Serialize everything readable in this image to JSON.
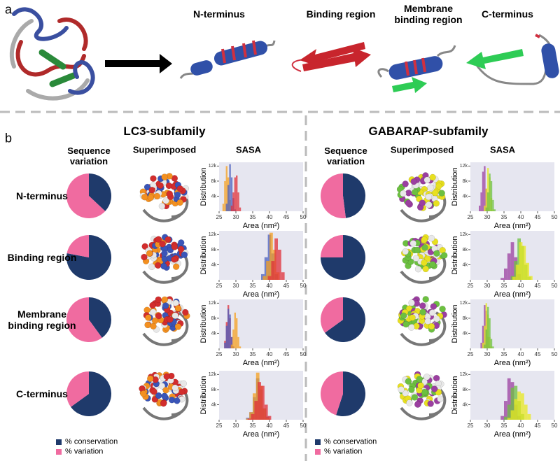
{
  "panel_a": {
    "label": "a",
    "regions": [
      "N-terminus",
      "Binding region",
      "Membrane binding region",
      "C-terminus"
    ]
  },
  "panel_b": {
    "label": "b",
    "rows": [
      "N-terminus",
      "Binding region",
      "Membrane binding region",
      "C-terminus"
    ],
    "groups": [
      {
        "title": "LC3-subfamily",
        "columns": [
          "Sequence variation",
          "Superimposed",
          "SASA"
        ],
        "legend": [
          {
            "label": "% conservation",
            "color": "#1f3a6b"
          },
          {
            "label": "% variation",
            "color": "#f06ba0"
          }
        ]
      },
      {
        "title": "GABARAP-subfamily",
        "columns": [
          "Sequence variation",
          "Superimposed",
          "SASA"
        ],
        "legend": [
          {
            "label": "% conservation",
            "color": "#1f3a6b"
          },
          {
            "label": "% variation",
            "color": "#f06ba0"
          }
        ]
      }
    ]
  },
  "chart_data": [
    {
      "type": "pie",
      "values": [
        37,
        63
      ],
      "colors": [
        "#1f3a6b",
        "#f06ba0"
      ]
    },
    {
      "type": "pie",
      "values": [
        78,
        22
      ],
      "colors": [
        "#1f3a6b",
        "#f06ba0"
      ]
    },
    {
      "type": "pie",
      "values": [
        40,
        60
      ],
      "colors": [
        "#1f3a6b",
        "#f06ba0"
      ]
    },
    {
      "type": "pie",
      "values": [
        65,
        35
      ],
      "colors": [
        "#1f3a6b",
        "#f06ba0"
      ]
    },
    {
      "type": "pie",
      "values": [
        48,
        52
      ],
      "colors": [
        "#1f3a6b",
        "#f06ba0"
      ]
    },
    {
      "type": "pie",
      "values": [
        75,
        25
      ],
      "colors": [
        "#1f3a6b",
        "#f06ba0"
      ]
    },
    {
      "type": "pie",
      "values": [
        65,
        35
      ],
      "colors": [
        "#1f3a6b",
        "#f06ba0"
      ]
    },
    {
      "type": "pie",
      "values": [
        55,
        45
      ],
      "colors": [
        "#1f3a6b",
        "#f06ba0"
      ]
    },
    {
      "type": "histogram",
      "xlabel": "Area (nm²)",
      "ylabel": "Distribution",
      "xlim": [
        25,
        50
      ],
      "xticks": [
        25,
        30,
        35,
        40,
        45,
        50
      ],
      "ylim": [
        0,
        13000
      ],
      "yticks": [
        {
          "value": 4000,
          "label": "4k"
        },
        {
          "value": 8000,
          "label": "8k"
        },
        {
          "value": 12000,
          "label": "12k"
        }
      ],
      "series": [
        {
          "color": "#f5a020",
          "bins": [
            26,
            26.5,
            27,
            27.5,
            28,
            28.5,
            29
          ],
          "values": [
            2000,
            8000,
            12000,
            9000,
            3000,
            500
          ]
        },
        {
          "color": "#4a5fbf",
          "bins": [
            27,
            27.5,
            28,
            28.5,
            29,
            29.5,
            30
          ],
          "values": [
            2000,
            7000,
            12500,
            9000,
            3500,
            500
          ]
        },
        {
          "color": "#e0303a",
          "bins": [
            28.5,
            29,
            29.5,
            30,
            30.5,
            31,
            31.5
          ],
          "values": [
            1500,
            5000,
            9000,
            9500,
            5000,
            1000
          ]
        }
      ]
    },
    {
      "type": "histogram",
      "xlabel": "Area (nm²)",
      "ylabel": "Distribution",
      "xlim": [
        25,
        50
      ],
      "xticks": [
        25,
        30,
        35,
        40,
        45,
        50
      ],
      "ylim": [
        0,
        13000
      ],
      "yticks": [
        {
          "value": 4000,
          "label": "4k"
        },
        {
          "value": 8000,
          "label": "8k"
        },
        {
          "value": 12000,
          "label": "12k"
        }
      ],
      "series": [
        {
          "color": "#4a5fbf",
          "bins": [
            37.5,
            38.5,
            39.5,
            40.5,
            41.5,
            42.5
          ],
          "values": [
            1500,
            6000,
            12000,
            7000,
            1500
          ]
        },
        {
          "color": "#f5a020",
          "bins": [
            38,
            39,
            40,
            41,
            42,
            43
          ],
          "values": [
            1000,
            5000,
            12500,
            8000,
            2000
          ]
        },
        {
          "color": "#e0303a",
          "bins": [
            39.5,
            40.5,
            41.5,
            42.5,
            43.5,
            44.5
          ],
          "values": [
            1000,
            5000,
            11000,
            8000,
            2000
          ]
        }
      ]
    },
    {
      "type": "histogram",
      "xlabel": "Area (nm²)",
      "ylabel": "Distribution",
      "xlim": [
        25,
        50
      ],
      "xticks": [
        25,
        30,
        35,
        40,
        45,
        50
      ],
      "ylim": [
        0,
        13000
      ],
      "yticks": [
        {
          "value": 4000,
          "label": "4k"
        },
        {
          "value": 8000,
          "label": "8k"
        },
        {
          "value": 12000,
          "label": "12k"
        }
      ],
      "series": [
        {
          "color": "#e0303a",
          "bins": [
            26.5,
            27,
            27.5,
            28,
            28.5,
            29,
            29.5
          ],
          "values": [
            2000,
            7000,
            11500,
            8000,
            3000,
            500
          ]
        },
        {
          "color": "#4a5fbf",
          "bins": [
            26.5,
            27,
            27.5,
            28,
            28.5,
            29,
            29.5
          ],
          "values": [
            1500,
            6000,
            10500,
            9000,
            3000,
            500
          ]
        },
        {
          "color": "#f5a020",
          "bins": [
            28.5,
            29,
            29.5,
            30,
            30.5,
            31,
            31.5
          ],
          "values": [
            1000,
            5000,
            9500,
            8000,
            3000,
            500
          ]
        }
      ]
    },
    {
      "type": "histogram",
      "xlabel": "Area (nm²)",
      "ylabel": "Distribution",
      "xlim": [
        25,
        50
      ],
      "xticks": [
        25,
        30,
        35,
        40,
        45,
        50
      ],
      "ylim": [
        0,
        13000
      ],
      "yticks": [
        {
          "value": 4000,
          "label": "4k"
        },
        {
          "value": 8000,
          "label": "8k"
        },
        {
          "value": 12000,
          "label": "12k"
        }
      ],
      "series": [
        {
          "color": "#4a5fbf",
          "bins": [
            33,
            34,
            35,
            36,
            37,
            38,
            39,
            40
          ],
          "values": [
            500,
            2000,
            6000,
            11000,
            8000,
            3000,
            800
          ]
        },
        {
          "color": "#f5a020",
          "bins": [
            33,
            34,
            35,
            36,
            37,
            38,
            39,
            40
          ],
          "values": [
            300,
            2000,
            7000,
            12500,
            9000,
            3000,
            600
          ]
        },
        {
          "color": "#e0303a",
          "bins": [
            33.5,
            34.5,
            35.5,
            36.5,
            37.5,
            38.5,
            39.5,
            40.5
          ],
          "values": [
            300,
            1500,
            5000,
            10000,
            9000,
            4000,
            1000
          ]
        }
      ]
    },
    {
      "type": "histogram",
      "xlabel": "Area (nm²)",
      "ylabel": "Distribution",
      "xlim": [
        25,
        50
      ],
      "xticks": [
        25,
        30,
        35,
        40,
        45,
        50
      ],
      "ylim": [
        0,
        13000
      ],
      "yticks": [
        {
          "value": 4000,
          "label": "4k"
        },
        {
          "value": 8000,
          "label": "8k"
        },
        {
          "value": 12000,
          "label": "12k"
        }
      ],
      "series": [
        {
          "color": "#9b3fa0",
          "bins": [
            27.5,
            28,
            28.5,
            29,
            29.5,
            30,
            30.5
          ],
          "values": [
            1500,
            5000,
            10500,
            12000,
            6000,
            1000
          ]
        },
        {
          "color": "#e8e820",
          "bins": [
            29,
            29.5,
            30,
            30.5,
            31,
            31.5,
            32
          ],
          "values": [
            1500,
            6000,
            11500,
            9000,
            3500,
            500
          ]
        },
        {
          "color": "#6cc040",
          "bins": [
            29.5,
            30,
            30.5,
            31,
            31.5,
            32,
            32.5
          ],
          "values": [
            1000,
            5000,
            10000,
            8000,
            3000,
            500
          ]
        }
      ]
    },
    {
      "type": "histogram",
      "xlabel": "Area (nm²)",
      "ylabel": "Distribution",
      "xlim": [
        25,
        50
      ],
      "xticks": [
        25,
        30,
        35,
        40,
        45,
        50
      ],
      "ylim": [
        0,
        13000
      ],
      "yticks": [
        {
          "value": 4000,
          "label": "4k"
        },
        {
          "value": 8000,
          "label": "8k"
        },
        {
          "value": 12000,
          "label": "12k"
        }
      ],
      "series": [
        {
          "color": "#9b3fa0",
          "bins": [
            34,
            35,
            36,
            37,
            38,
            39,
            40
          ],
          "values": [
            500,
            3000,
            7000,
            10000,
            6000,
            1500
          ]
        },
        {
          "color": "#6cc040",
          "bins": [
            37,
            38,
            39,
            40,
            41,
            42,
            43
          ],
          "values": [
            1000,
            5000,
            11000,
            9000,
            4000,
            800
          ]
        },
        {
          "color": "#e8e820",
          "bins": [
            37.5,
            38.5,
            39.5,
            40.5,
            41.5,
            42.5,
            43.5
          ],
          "values": [
            800,
            4000,
            10000,
            9000,
            4500,
            1000
          ]
        }
      ]
    },
    {
      "type": "histogram",
      "xlabel": "Area (nm²)",
      "ylabel": "Distribution",
      "xlim": [
        25,
        50
      ],
      "xticks": [
        25,
        30,
        35,
        40,
        45,
        50
      ],
      "ylim": [
        0,
        13000
      ],
      "yticks": [
        {
          "value": 4000,
          "label": "4k"
        },
        {
          "value": 8000,
          "label": "8k"
        },
        {
          "value": 12000,
          "label": "12k"
        }
      ],
      "series": [
        {
          "color": "#9b3fa0",
          "bins": [
            28,
            28.5,
            29,
            29.5,
            30,
            30.5,
            31
          ],
          "values": [
            1500,
            6000,
            11500,
            10000,
            3000,
            500
          ]
        },
        {
          "color": "#e8e820",
          "bins": [
            28.5,
            29,
            29.5,
            30,
            30.5,
            31,
            31.5
          ],
          "values": [
            1500,
            6000,
            12000,
            9000,
            3000,
            500
          ]
        },
        {
          "color": "#6cc040",
          "bins": [
            29,
            29.5,
            30,
            30.5,
            31,
            31.5,
            32
          ],
          "values": [
            1000,
            5000,
            11000,
            8000,
            2500,
            500
          ]
        }
      ]
    },
    {
      "type": "histogram",
      "xlabel": "Area (nm²)",
      "ylabel": "Distribution",
      "xlim": [
        25,
        50
      ],
      "xticks": [
        25,
        30,
        35,
        40,
        45,
        50
      ],
      "ylim": [
        0,
        13000
      ],
      "yticks": [
        {
          "value": 4000,
          "label": "4k"
        },
        {
          "value": 8000,
          "label": "8k"
        },
        {
          "value": 12000,
          "label": "12k"
        }
      ],
      "series": [
        {
          "color": "#9b3fa0",
          "bins": [
            34,
            35,
            36,
            37,
            38,
            39,
            40
          ],
          "values": [
            1000,
            5000,
            11000,
            10000,
            4000,
            1000
          ]
        },
        {
          "color": "#6cc040",
          "bins": [
            35,
            36,
            37,
            38,
            39,
            40,
            41
          ],
          "values": [
            800,
            4000,
            8500,
            9000,
            5000,
            1500
          ]
        },
        {
          "color": "#e8e820",
          "bins": [
            36,
            37,
            38,
            39,
            40,
            41,
            42,
            43
          ],
          "values": [
            500,
            2500,
            5500,
            7500,
            7000,
            4000,
            1500
          ]
        }
      ]
    }
  ]
}
